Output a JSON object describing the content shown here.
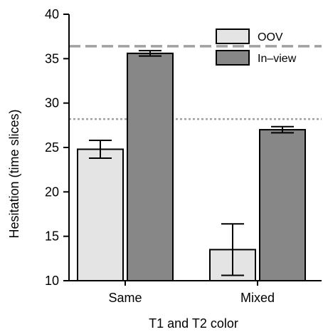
{
  "colors": {
    "oov": "#e4e4e4",
    "in_view": "#878787",
    "axis": "#000000",
    "reference_lines": "#a0a0a0"
  },
  "chart_data": {
    "type": "bar",
    "categories": [
      "Same",
      "Mixed"
    ],
    "series": [
      {
        "name": "OOV",
        "values": [
          24.8,
          13.5
        ],
        "error": [
          1.0,
          2.9
        ]
      },
      {
        "name": "In–view",
        "values": [
          35.6,
          27.0
        ],
        "error": [
          0.3,
          0.35
        ]
      }
    ],
    "title": "",
    "xlabel": "T1 and T2 color",
    "ylabel": "Hesitation (time slices)",
    "ylim": [
      10,
      40
    ],
    "yticks": [
      10,
      15,
      20,
      25,
      30,
      35,
      40
    ],
    "reference_lines": [
      {
        "value": 36.4,
        "style": "dashed"
      },
      {
        "value": 28.2,
        "style": "dotted"
      }
    ],
    "grid": false,
    "legend_position": "top-right"
  }
}
